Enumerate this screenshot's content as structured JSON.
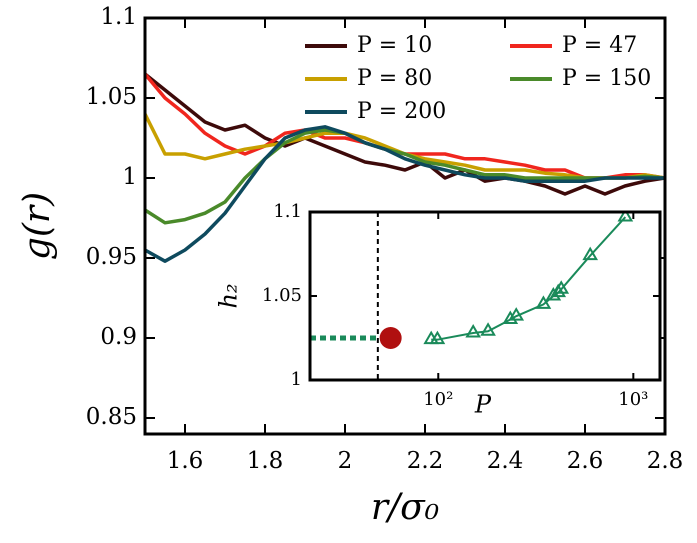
{
  "chart_data": [
    {
      "type": "line",
      "xlabel": "r/σ₀",
      "ylabel": "g(r)",
      "x": [
        1.5,
        1.55,
        1.6,
        1.65,
        1.7,
        1.75,
        1.8,
        1.85,
        1.9,
        1.95,
        2.0,
        2.05,
        2.1,
        2.15,
        2.2,
        2.25,
        2.3,
        2.35,
        2.4,
        2.45,
        2.5,
        2.55,
        2.6,
        2.65,
        2.7,
        2.75,
        2.8
      ],
      "series": [
        {
          "name": "P = 10",
          "color": "#3d0a0a",
          "values": [
            1.065,
            1.055,
            1.045,
            1.035,
            1.03,
            1.033,
            1.025,
            1.02,
            1.025,
            1.02,
            1.015,
            1.01,
            1.008,
            1.005,
            1.01,
            1.0,
            1.005,
            0.998,
            1.0,
            0.998,
            0.995,
            0.99,
            0.995,
            0.99,
            0.995,
            0.998,
            1.0
          ]
        },
        {
          "name": "P = 47",
          "color": "#f0261e",
          "values": [
            1.065,
            1.05,
            1.04,
            1.028,
            1.02,
            1.015,
            1.02,
            1.028,
            1.03,
            1.025,
            1.025,
            1.022,
            1.018,
            1.015,
            1.015,
            1.015,
            1.012,
            1.012,
            1.01,
            1.008,
            1.005,
            1.005,
            1.0,
            1.0,
            1.002,
            1.002,
            1.0
          ]
        },
        {
          "name": "P = 80",
          "color": "#c8a000",
          "values": [
            1.04,
            1.015,
            1.015,
            1.012,
            1.015,
            1.018,
            1.02,
            1.022,
            1.025,
            1.028,
            1.028,
            1.025,
            1.02,
            1.015,
            1.012,
            1.01,
            1.008,
            1.005,
            1.005,
            1.005,
            1.003,
            1.002,
            1.0,
            1.0,
            1.0,
            1.002,
            1.0
          ]
        },
        {
          "name": "P = 150",
          "color": "#4a8a2a",
          "values": [
            0.98,
            0.972,
            0.974,
            0.978,
            0.985,
            1.0,
            1.012,
            1.022,
            1.028,
            1.03,
            1.028,
            1.022,
            1.018,
            1.015,
            1.01,
            1.008,
            1.005,
            1.002,
            1.002,
            1.0,
            1.0,
            1.0,
            1.0,
            1.0,
            1.0,
            1.001,
            1.0
          ]
        },
        {
          "name": "P = 200",
          "color": "#0e4a5e",
          "values": [
            0.955,
            0.948,
            0.955,
            0.965,
            0.978,
            0.995,
            1.012,
            1.025,
            1.03,
            1.032,
            1.028,
            1.022,
            1.018,
            1.012,
            1.008,
            1.005,
            1.002,
            1.0,
            1.0,
            0.998,
            0.998,
            0.998,
            0.998,
            1.0,
            1.0,
            1.0,
            1.0
          ]
        }
      ],
      "xlim": [
        1.5,
        2.8
      ],
      "xticks": [
        1.6,
        1.8,
        2,
        2.2,
        2.4,
        2.6,
        2.8
      ],
      "ylim": [
        0.84,
        1.1
      ],
      "yticks": [
        0.85,
        0.9,
        0.95,
        1,
        1.05,
        1.1
      ],
      "legend": "upper right",
      "grid": false
    },
    {
      "type": "line",
      "xscale": "log",
      "marker": "triangle",
      "xlabel": "P",
      "ylabel": "h₂",
      "x": [
        92,
        99,
        151,
        180,
        234,
        251,
        346,
        389,
        412,
        427,
        601,
        910
      ],
      "values": [
        1.024,
        1.024,
        1.028,
        1.029,
        1.036,
        1.038,
        1.045,
        1.05,
        1.052,
        1.054,
        1.074,
        1.097
      ],
      "color": "#1a8a5a",
      "point": {
        "x": 57,
        "y": 1.025,
        "color": "#b01010"
      },
      "vline": 49,
      "xlim": [
        22,
        1370
      ],
      "xticks": [
        {
          "value": 100,
          "label": "10²"
        },
        {
          "value": 1000,
          "label": "10³"
        }
      ],
      "ylim": [
        1,
        1.1
      ],
      "yticks": [
        1,
        1.05,
        1.1
      ]
    }
  ]
}
